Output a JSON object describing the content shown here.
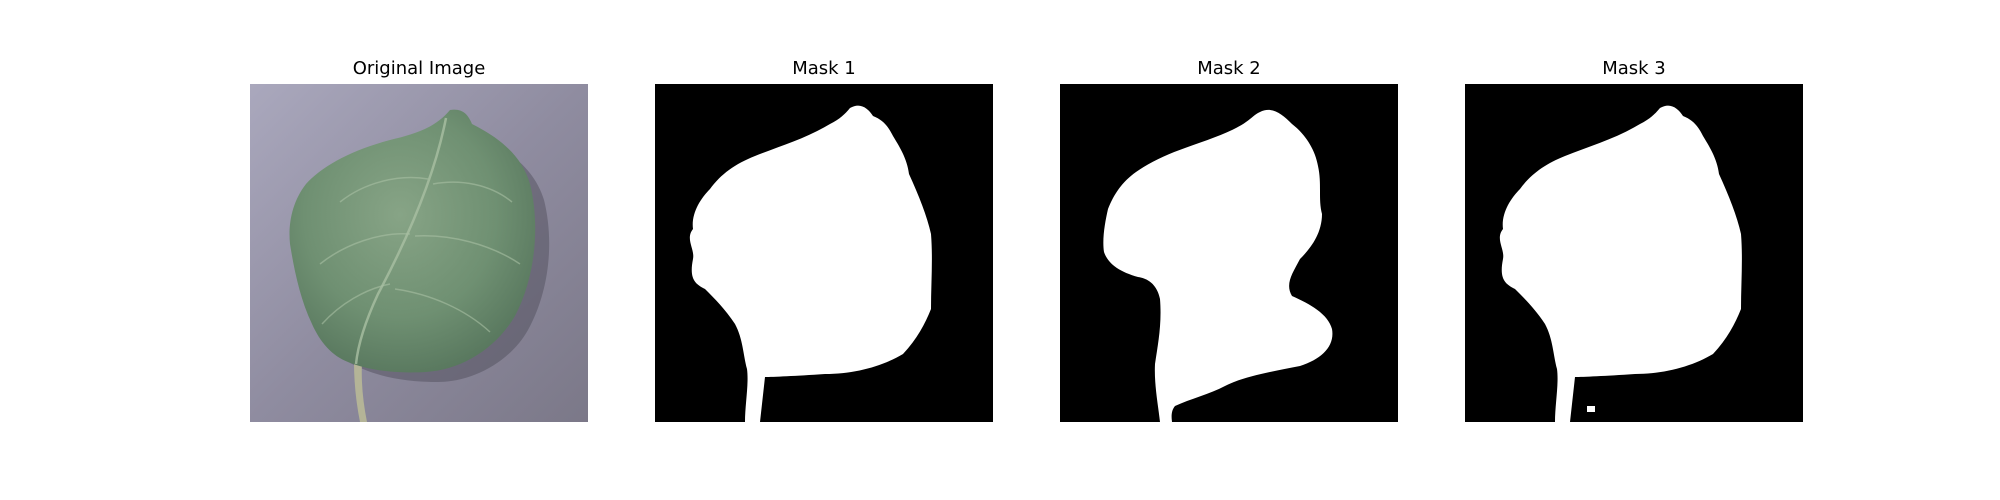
{
  "figure": {
    "panels": [
      {
        "title": "Original Image"
      },
      {
        "title": "Mask 1"
      },
      {
        "title": "Mask 2"
      },
      {
        "title": "Mask 3"
      }
    ]
  },
  "colors": {
    "background": "#ffffff",
    "mask_background": "#000000",
    "mask_foreground": "#ffffff",
    "photo_background": "#8f8ca0",
    "leaf": "#6f9072"
  }
}
